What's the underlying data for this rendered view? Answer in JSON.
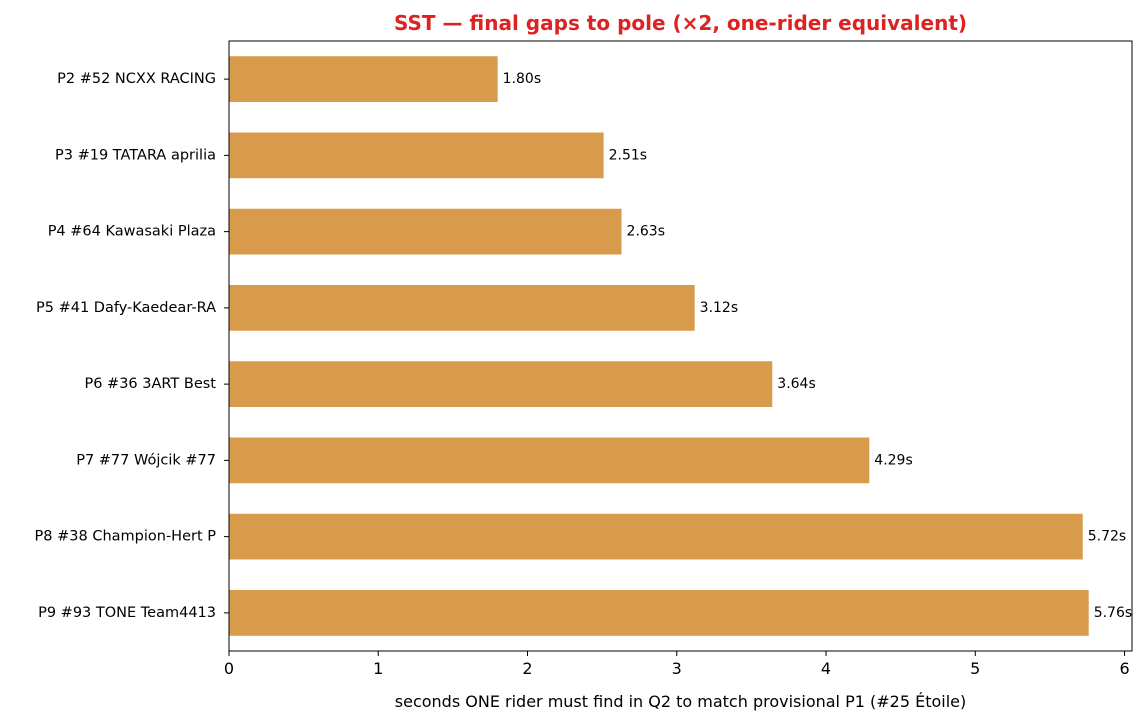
{
  "chart_data": {
    "type": "bar",
    "orientation": "horizontal",
    "title": "SST — final gaps to pole (×2, one-rider equivalent)",
    "xlabel": "seconds ONE rider must find in Q2 to match provisional P1 (#25 Étoile)",
    "ylabel": "",
    "categories": [
      "P2 #52 NCXX RACING",
      "P3 #19 TATARA aprilia",
      "P4 #64 Kawasaki Plaza",
      "P5 #41 Dafy-Kaedear-RA",
      "P6 #36 3ART Best",
      "P7 #77 Wójcik #77",
      "P8 #38 Champion-Hert P",
      "P9 #93 TONE Team4413"
    ],
    "values": [
      1.8,
      2.51,
      2.63,
      3.12,
      3.64,
      4.29,
      5.72,
      5.76
    ],
    "value_labels": [
      "1.80s",
      "2.51s",
      "2.63s",
      "3.12s",
      "3.64s",
      "4.29s",
      "5.72s",
      "5.76s"
    ],
    "xlim": [
      0,
      6.05
    ],
    "xticks": [
      "0",
      "1",
      "2",
      "3",
      "4",
      "5",
      "6"
    ],
    "grid": false,
    "legend": "none",
    "colors": {
      "bar": "#d89b4c",
      "title": "#dd2222",
      "axis": "#000000"
    }
  }
}
